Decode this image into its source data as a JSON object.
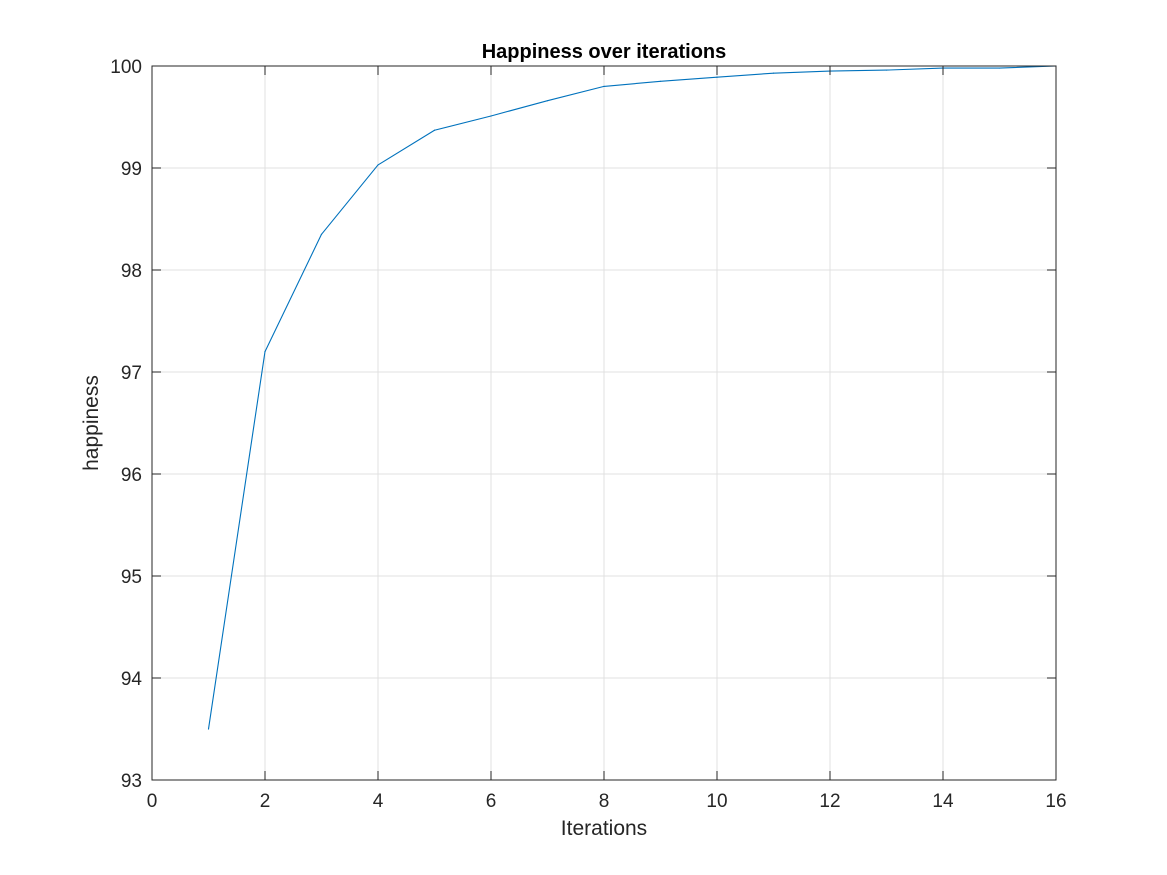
{
  "chart_data": {
    "type": "line",
    "title": "Happiness over iterations",
    "xlabel": "Iterations",
    "ylabel": "happiness",
    "xlim": [
      0,
      16
    ],
    "ylim": [
      93,
      100
    ],
    "xticks": [
      0,
      2,
      4,
      6,
      8,
      10,
      12,
      14,
      16
    ],
    "yticks": [
      93,
      94,
      95,
      96,
      97,
      98,
      99,
      100
    ],
    "grid": true,
    "legend": "none",
    "series": [
      {
        "color": "#0072bd",
        "x": [
          1,
          2,
          3,
          4,
          5,
          6,
          7,
          8,
          9,
          10,
          11,
          12,
          13,
          14,
          15,
          16
        ],
        "y": [
          93.5,
          97.2,
          98.35,
          99.03,
          99.37,
          99.51,
          99.66,
          99.8,
          99.85,
          99.89,
          99.93,
          99.95,
          99.96,
          99.98,
          99.98,
          100.0
        ]
      }
    ]
  }
}
